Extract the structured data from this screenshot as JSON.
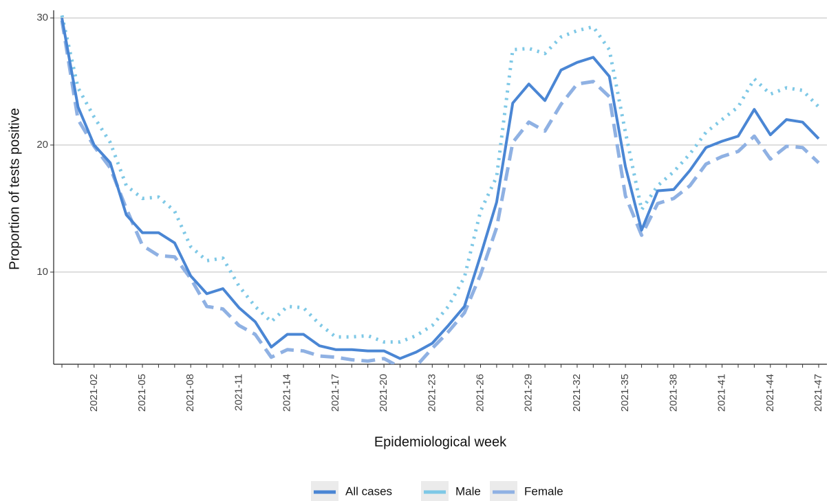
{
  "chart_data": {
    "type": "line",
    "x_label": "Epidemiological week",
    "y_label": "Proportion of tests positive",
    "categories": [
      null,
      null,
      "2021-02",
      null,
      null,
      "2021-05",
      null,
      null,
      "2021-08",
      null,
      null,
      "2021-11",
      null,
      null,
      "2021-14",
      null,
      null,
      "2021-17",
      null,
      null,
      "2021-20",
      null,
      null,
      "2021-23",
      null,
      null,
      "2021-26",
      null,
      null,
      "2021-29",
      null,
      null,
      "2021-32",
      null,
      null,
      "2021-35",
      null,
      null,
      "2021-38",
      null,
      null,
      "2021-41",
      null,
      null,
      "2021-44",
      null,
      null,
      "2021-47"
    ],
    "series": [
      {
        "name": "All cases",
        "color": "#4a86d4",
        "style": "solid",
        "values": [
          30,
          23,
          20,
          18.6,
          14.5,
          13.1,
          13.1,
          12.3,
          9.7,
          8.3,
          8.7,
          7.2,
          6.1,
          4.1,
          5.1,
          5.1,
          4.2,
          3.9,
          3.9,
          3.8,
          3.8,
          3.2,
          3.7,
          4.4,
          5.8,
          7.3,
          11.3,
          15.5,
          23.3,
          24.8,
          23.5,
          25.9,
          26.5,
          26.9,
          25.4,
          18.3,
          13.3,
          16.4,
          16.5,
          18.0,
          19.8,
          20.3,
          20.7,
          22.8,
          20.8,
          22.0,
          21.8,
          20.5
        ]
      },
      {
        "name": "Male",
        "color": "#7ec8e6",
        "style": "dotted",
        "values": [
          30.2,
          24.5,
          22.2,
          20.2,
          16.8,
          15.8,
          15.9,
          14.8,
          12.0,
          10.9,
          11.1,
          8.9,
          7.3,
          6.1,
          7.3,
          7.2,
          5.9,
          4.9,
          4.9,
          5.0,
          4.5,
          4.5,
          5.0,
          5.8,
          7.3,
          9.6,
          14.8,
          17.5,
          27.5,
          27.6,
          27.2,
          28.5,
          29.0,
          29.3,
          27.5,
          21.0,
          14.9,
          16.8,
          17.9,
          19.3,
          21.0,
          22.0,
          23.0,
          25.2,
          24.0,
          24.5,
          24.3,
          23.0
        ]
      },
      {
        "name": "Female",
        "color": "#8fb1e3",
        "style": "dashed",
        "values": [
          29.8,
          22.0,
          19.9,
          18.2,
          15.0,
          12.1,
          11.3,
          11.2,
          9.5,
          7.3,
          7.1,
          5.8,
          5.1,
          3.3,
          3.9,
          3.8,
          3.4,
          3.3,
          3.1,
          3.0,
          3.2,
          2.5,
          2.6,
          4.0,
          5.3,
          6.8,
          9.8,
          13.5,
          20.2,
          21.8,
          21.1,
          23.2,
          24.8,
          25.0,
          23.8,
          16.0,
          12.9,
          15.4,
          15.8,
          16.8,
          18.5,
          19.1,
          19.5,
          20.7,
          18.9,
          19.9,
          19.8,
          18.6
        ]
      }
    ],
    "ylim": [
      2.75,
      30.6
    ],
    "yticks": [
      10,
      20,
      30
    ],
    "grid": true,
    "legend": "bottom"
  }
}
